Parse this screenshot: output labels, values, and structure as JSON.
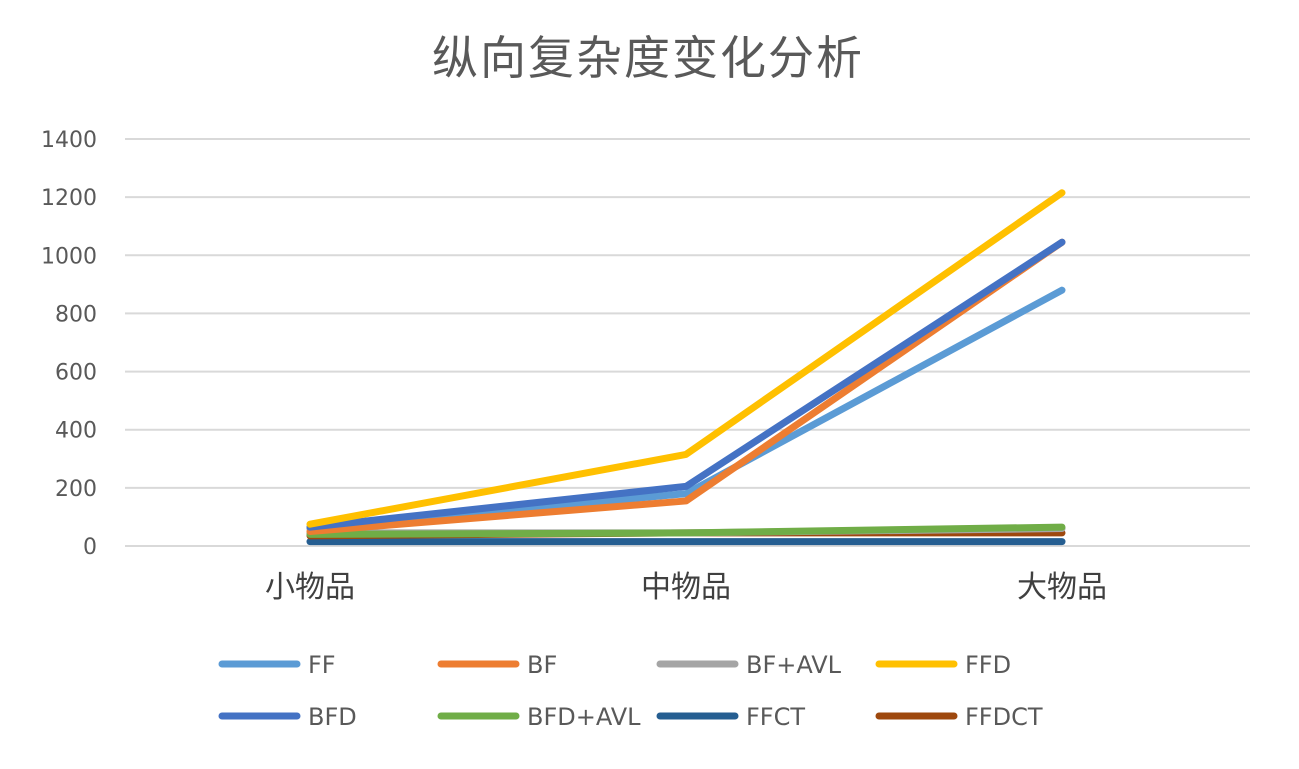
{
  "chart_data": {
    "type": "line",
    "title": "纵向复杂度变化分析",
    "xlabel": "",
    "ylabel": "",
    "categories": [
      "小物品",
      "中物品",
      "大物品"
    ],
    "ylim": [
      0,
      1400
    ],
    "yticks": [
      0,
      200,
      400,
      600,
      800,
      1000,
      1200,
      1400
    ],
    "ytick_labels": [
      "0",
      "200",
      "400",
      "600",
      "800",
      "1000",
      "1200",
      "1400"
    ],
    "grid": true,
    "legend_position": "bottom",
    "series": [
      {
        "name": "FF",
        "color": "#5B9BD5",
        "values": [
          60,
          180,
          880
        ]
      },
      {
        "name": "BF",
        "color": "#ED7D31",
        "values": [
          50,
          155,
          1045
        ]
      },
      {
        "name": "BF+AVL",
        "color": "#A5A5A5",
        "values": [
          45,
          45,
          60
        ]
      },
      {
        "name": "FFD",
        "color": "#FFC000",
        "values": [
          75,
          315,
          1215
        ]
      },
      {
        "name": "BFD",
        "color": "#4472C4",
        "values": [
          65,
          205,
          1045
        ]
      },
      {
        "name": "BFD+AVL",
        "color": "#70AD47",
        "values": [
          40,
          45,
          65
        ]
      },
      {
        "name": "FFCT",
        "color": "#255E91",
        "values": [
          15,
          15,
          15
        ]
      },
      {
        "name": "FFDCT",
        "color": "#9E480E",
        "values": [
          35,
          45,
          45
        ]
      }
    ]
  }
}
